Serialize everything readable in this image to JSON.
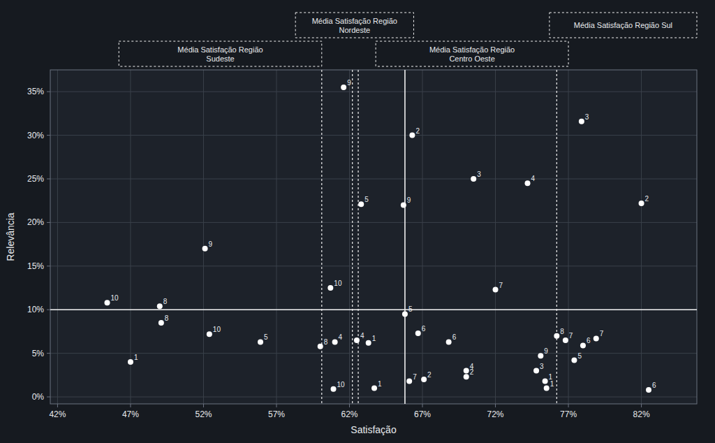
{
  "chart_data": {
    "type": "scatter",
    "xlabel": "Satisfação",
    "ylabel": "Relevância",
    "xlim": [
      0.415,
      0.858
    ],
    "ylim": [
      -0.008,
      0.375
    ],
    "xticks": [
      {
        "value": 0.42,
        "label": "42%"
      },
      {
        "value": 0.47,
        "label": "47%"
      },
      {
        "value": 0.52,
        "label": "52%"
      },
      {
        "value": 0.57,
        "label": "57%"
      },
      {
        "value": 0.62,
        "label": "62%"
      },
      {
        "value": 0.67,
        "label": "67%"
      },
      {
        "value": 0.72,
        "label": "72%"
      },
      {
        "value": 0.77,
        "label": "77%"
      },
      {
        "value": 0.82,
        "label": "82%"
      }
    ],
    "yticks": [
      {
        "value": 0.0,
        "label": "0%"
      },
      {
        "value": 0.05,
        "label": "5%"
      },
      {
        "value": 0.1,
        "label": "10%"
      },
      {
        "value": 0.15,
        "label": "15%"
      },
      {
        "value": 0.2,
        "label": "20%"
      },
      {
        "value": 0.25,
        "label": "25%"
      },
      {
        "value": 0.3,
        "label": "30%"
      },
      {
        "value": 0.35,
        "label": "35%"
      }
    ],
    "grid": true,
    "color": "#ffffff",
    "series": [
      {
        "x": [
          0.454,
          0.49,
          0.47,
          0.491,
          0.521,
          0.524,
          0.559
        ],
        "values": [
          0.108,
          0.104,
          0.04,
          0.085,
          0.17,
          0.072,
          0.063
        ],
        "labels": [
          "10",
          "8",
          "1",
          "8",
          "9",
          "10",
          "5"
        ]
      },
      {
        "x": [
          0.616,
          0.628,
          0.607,
          0.6,
          0.61,
          0.625,
          0.633,
          0.609,
          0.637
        ],
        "values": [
          0.355,
          0.221,
          0.125,
          0.058,
          0.063,
          0.065,
          0.062,
          0.009,
          0.01
        ],
        "labels": [
          "9",
          "5",
          "10",
          "8",
          "4",
          "4",
          "1",
          "10",
          "1"
        ]
      },
      {
        "x": [
          0.663,
          0.657,
          0.705,
          0.742,
          0.72,
          0.658,
          0.667,
          0.688,
          0.751,
          0.748,
          0.754,
          0.661,
          0.671,
          0.7,
          0.7
        ],
        "values": [
          0.3,
          0.22,
          0.25,
          0.245,
          0.123,
          0.095,
          0.073,
          0.063,
          0.047,
          0.03,
          0.018,
          0.018,
          0.02,
          0.03,
          0.023
        ],
        "labels": [
          "2",
          "9",
          "3",
          "4",
          "7",
          "5",
          "6",
          "6",
          "9",
          "3",
          "1",
          "7",
          "2",
          "4",
          "2"
        ]
      },
      {
        "x": [
          0.779,
          0.82,
          0.762,
          0.768,
          0.789,
          0.78,
          0.774,
          0.755,
          0.825
        ],
        "values": [
          0.316,
          0.222,
          0.07,
          0.065,
          0.067,
          0.059,
          0.042,
          0.01,
          0.008
        ],
        "labels": [
          "3",
          "2",
          "8",
          "7",
          "7",
          "6",
          "5",
          "1",
          "6"
        ]
      }
    ],
    "reference_lines": [
      {
        "axis": "y",
        "value": 0.1,
        "line_style": "solid"
      },
      {
        "axis": "x",
        "value": 0.601,
        "line_style": "dotted"
      },
      {
        "axis": "x",
        "value": 0.622,
        "line_style": "dotted"
      },
      {
        "axis": "x",
        "value": 0.626,
        "line_style": "dotted"
      },
      {
        "axis": "x",
        "value": 0.658,
        "line_style": "solid"
      },
      {
        "axis": "x",
        "value": 0.762,
        "line_style": "dotted"
      }
    ],
    "annotations": [
      {
        "text": "Média Satisfação Região\nSudeste",
        "x0": 0.462,
        "x1": 0.601
      },
      {
        "text": "Média Satisfação Região\nNordeste",
        "x0": 0.583,
        "x1": 0.664
      },
      {
        "text": "Média Satisfação Região\nCentro Oeste",
        "x0": 0.638,
        "x1": 0.77
      },
      {
        "text": "Média Satisfação Região Sul",
        "x0": 0.757,
        "x1": 0.858
      }
    ]
  }
}
